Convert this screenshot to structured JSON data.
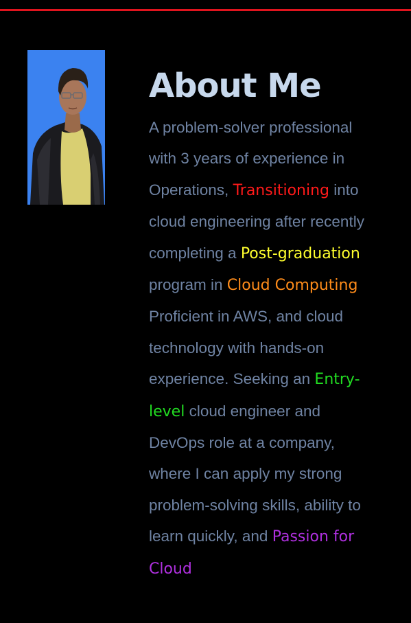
{
  "colors": {
    "background": "#000000",
    "accent_rule": "#e0141e",
    "heading": "#c7d8ec",
    "body_text": "#6f83a3",
    "photo_bg": "#3b82f0",
    "highlight_red": "#ff1a1a",
    "highlight_yellow": "#ffff2e",
    "highlight_orange": "#ff8c1a",
    "highlight_green": "#22dd22",
    "highlight_purple": "#b030e0"
  },
  "profile": {
    "photo_alt_icon": "profile-photo"
  },
  "about": {
    "title": "About Me",
    "segments": [
      {
        "text": "A problem-solver professional with 3 years of experience in Operations, ",
        "style": "normal"
      },
      {
        "text": "Transitioning",
        "style": "red"
      },
      {
        "text": " into cloud engineering after recently completing a ",
        "style": "normal"
      },
      {
        "text": "Post-graduation",
        "style": "yellow"
      },
      {
        "text": " program in ",
        "style": "normal"
      },
      {
        "text": "Cloud Computing",
        "style": "orange"
      },
      {
        "text": " Proficient in AWS, and cloud technology with hands-on experience. Seeking an ",
        "style": "normal"
      },
      {
        "text": "Entry-level",
        "style": "green"
      },
      {
        "text": " cloud engineer and DevOps role at a company, where I can apply my strong problem-solving skills, ability to learn quickly, and ",
        "style": "normal"
      },
      {
        "text": "Passion for Cloud",
        "style": "purple"
      }
    ]
  }
}
